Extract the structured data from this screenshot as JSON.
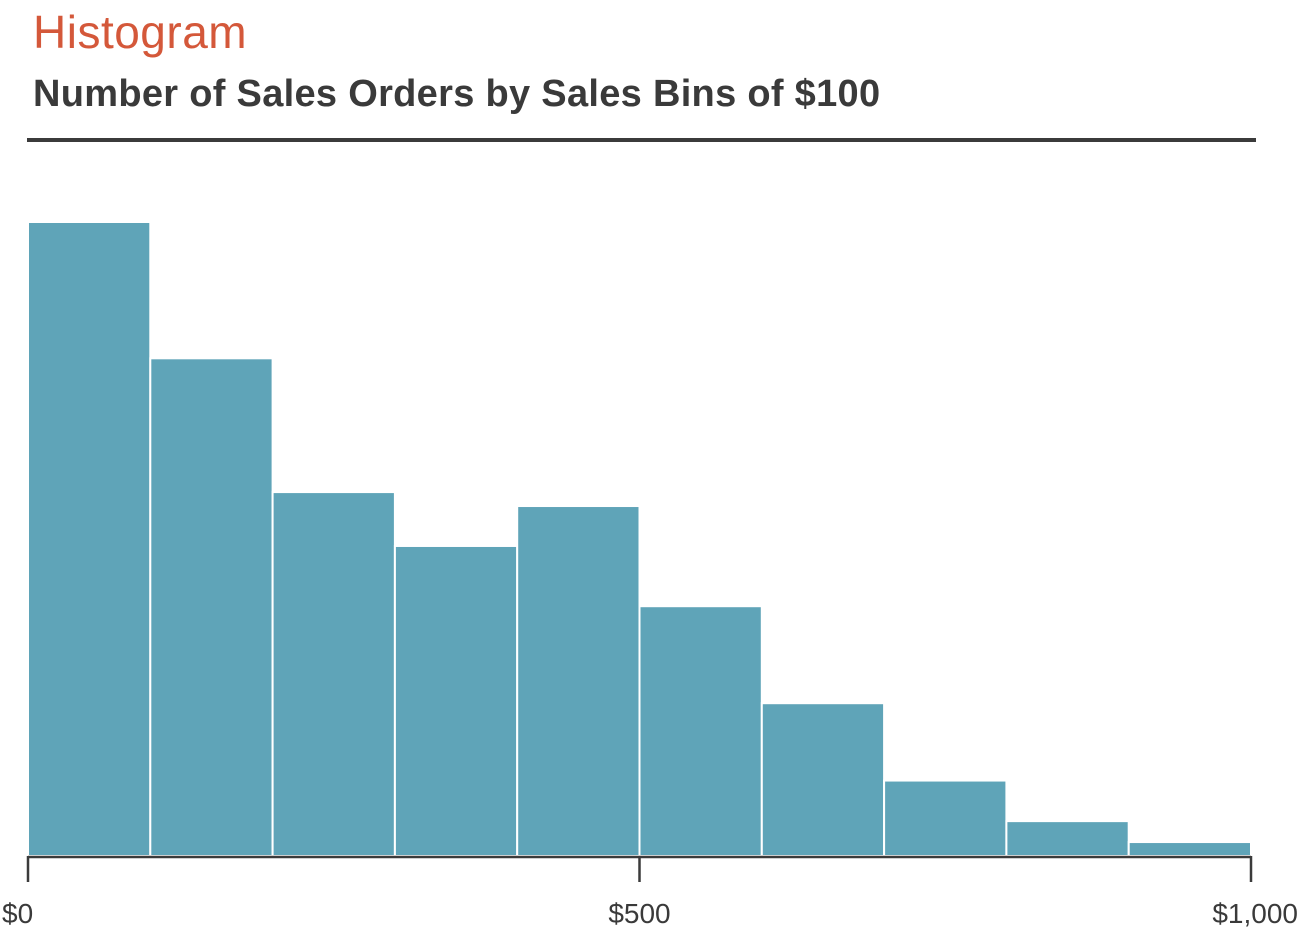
{
  "header": {
    "title": "Histogram",
    "subtitle": "Number of Sales Orders by Sales Bins of $100"
  },
  "colors": {
    "title": "#d4583a",
    "bar": "#5fa4b8",
    "text": "#3a3a3a",
    "axis": "#3b3b3b"
  },
  "chart_data": {
    "type": "bar",
    "title": "Histogram",
    "subtitle": "Number of Sales Orders by Sales Bins of $100",
    "xlabel": "",
    "ylabel": "",
    "xlim": [
      0,
      1000
    ],
    "ylim": [
      0,
      100
    ],
    "bin_width": 100,
    "bins": [
      {
        "start": 0,
        "end": 100,
        "value": 100
      },
      {
        "start": 100,
        "end": 200,
        "value": 78.5
      },
      {
        "start": 200,
        "end": 300,
        "value": 57.4
      },
      {
        "start": 300,
        "end": 400,
        "value": 48.9
      },
      {
        "start": 400,
        "end": 500,
        "value": 55.2
      },
      {
        "start": 500,
        "end": 600,
        "value": 39.4
      },
      {
        "start": 600,
        "end": 700,
        "value": 24.1
      },
      {
        "start": 700,
        "end": 800,
        "value": 11.9
      },
      {
        "start": 800,
        "end": 900,
        "value": 5.5
      },
      {
        "start": 900,
        "end": 1000,
        "value": 2.2
      }
    ],
    "x_ticks": [
      {
        "value": 0,
        "label": "$0"
      },
      {
        "value": 500,
        "label": "$500"
      },
      {
        "value": 1000,
        "label": "$1,000"
      }
    ],
    "y_axis_visible": false,
    "grid": false,
    "legend": "none"
  }
}
